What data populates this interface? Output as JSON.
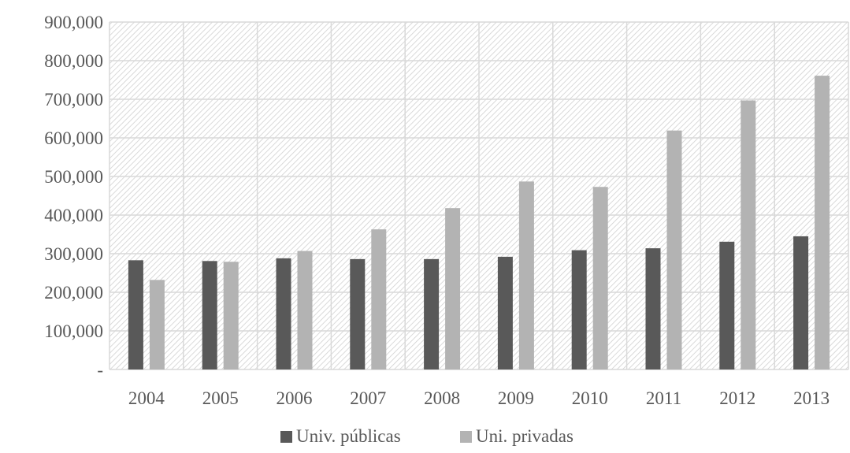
{
  "chart_data": {
    "type": "bar",
    "categories": [
      "2004",
      "2005",
      "2006",
      "2007",
      "2008",
      "2009",
      "2010",
      "2011",
      "2012",
      "2013"
    ],
    "series": [
      {
        "name": "Univ. públicas",
        "color": "#595959",
        "values": [
          283000,
          281000,
          288000,
          286000,
          286000,
          292000,
          309000,
          314000,
          331000,
          345000
        ]
      },
      {
        "name": "Uni. privadas",
        "color": "#b3b3b3",
        "values": [
          232000,
          279000,
          307000,
          363000,
          418000,
          487000,
          473000,
          619000,
          697000,
          761000
        ]
      }
    ],
    "y_ticks": [
      {
        "value": 0,
        "label": "-"
      },
      {
        "value": 100000,
        "label": "100,000"
      },
      {
        "value": 200000,
        "label": "200,000"
      },
      {
        "value": 300000,
        "label": "300,000"
      },
      {
        "value": 400000,
        "label": "400,000"
      },
      {
        "value": 500000,
        "label": "500,000"
      },
      {
        "value": 600000,
        "label": "600,000"
      },
      {
        "value": 700000,
        "label": "700,000"
      },
      {
        "value": 800000,
        "label": "800,000"
      },
      {
        "value": 900000,
        "label": "900,000"
      }
    ],
    "ylim": [
      0,
      900000
    ],
    "title": "",
    "xlabel": "",
    "ylabel": "",
    "grid": true,
    "plot_background": "diagonal-hatch",
    "legend_position": "bottom"
  }
}
